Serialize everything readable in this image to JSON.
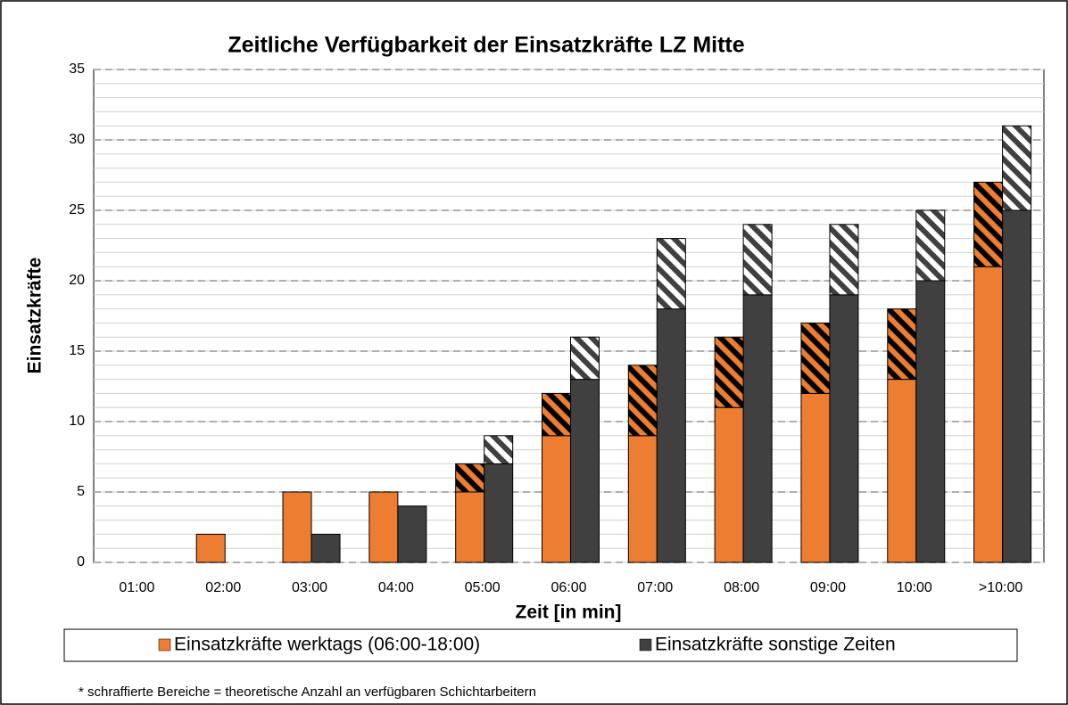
{
  "chart_data": {
    "type": "bar",
    "title": "Zeitliche Verfügbarkeit der Einsatzkräfte LZ Mitte",
    "x_label": "Zeit [in min]",
    "y_label": "Einsatzkräfte",
    "footnote": "* schraffierte Bereiche = theoretische Anzahl an verfügbaren Schichtarbeitern",
    "categories": [
      "01:00",
      "02:00",
      "03:00",
      "04:00",
      "05:00",
      "06:00",
      "07:00",
      "08:00",
      "09:00",
      "10:00",
      ">10:00"
    ],
    "series": [
      {
        "name": "Einsatzkräfte werktags (06:00-18:00)",
        "color": "#ed7d31",
        "hatch_color": "#000000",
        "values": [
          0,
          2,
          5,
          5,
          5,
          9,
          9,
          11,
          12,
          13,
          21
        ],
        "hatched": [
          0,
          0,
          0,
          0,
          2,
          3,
          5,
          5,
          5,
          5,
          6
        ]
      },
      {
        "name": "Einsatzkräfte sonstige Zeiten",
        "color": "#404040",
        "hatch_color": "#ffffff",
        "values": [
          0,
          0,
          2,
          4,
          7,
          13,
          18,
          19,
          19,
          20,
          25
        ],
        "hatched": [
          0,
          0,
          0,
          0,
          2,
          3,
          5,
          5,
          5,
          5,
          6
        ]
      }
    ],
    "ylim": [
      0,
      35
    ],
    "yticks": [
      0,
      5,
      10,
      15,
      20,
      25,
      30,
      35
    ],
    "grid": true,
    "minor_grid_step": 1,
    "legend": "bottom"
  }
}
